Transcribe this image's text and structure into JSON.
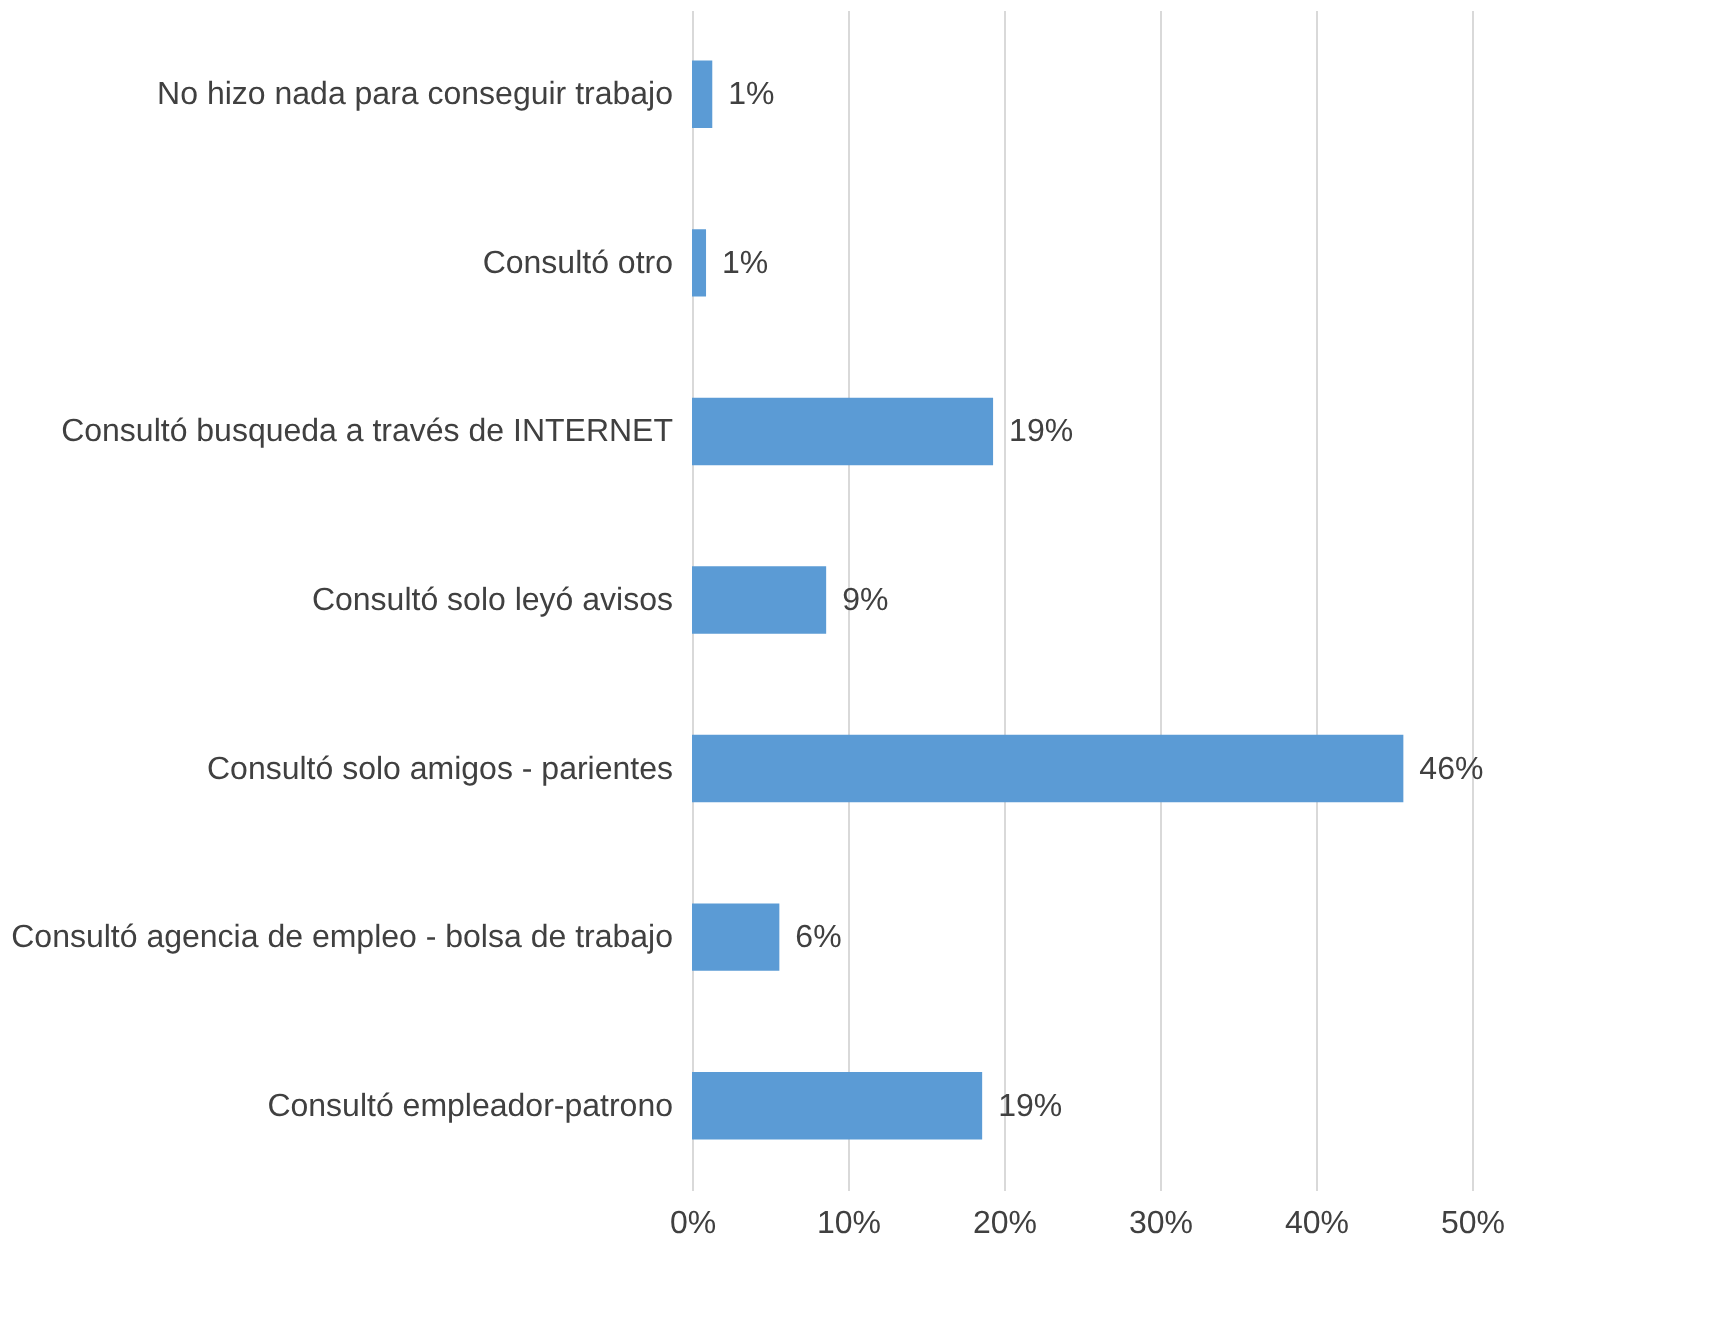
{
  "chart_data": {
    "type": "bar",
    "orientation": "horizontal",
    "categories": [
      "No hizo nada para conseguir trabajo",
      "Consultó otro",
      "Consultó busqueda a través de INTERNET",
      "Consultó solo leyó avisos",
      "Consultó solo amigos - parientes",
      "Consultó agencia de empleo - bolsa de trabajo",
      "Consultó empleador-patrono"
    ],
    "values": [
      1.3,
      0.9,
      19.3,
      8.6,
      45.6,
      5.6,
      18.6
    ],
    "value_labels": [
      "1%",
      "1%",
      "19%",
      "9%",
      "46%",
      "6%",
      "19%"
    ],
    "color": "#5b9bd5",
    "xlim": [
      0,
      50
    ],
    "xticks": [
      {
        "value": 0,
        "label": "0%"
      },
      {
        "value": 10,
        "label": "10%"
      },
      {
        "value": 20,
        "label": "20%"
      },
      {
        "value": 30,
        "label": "30%"
      },
      {
        "value": 40,
        "label": "40%"
      },
      {
        "value": 50,
        "label": "50%"
      }
    ],
    "grid": "x"
  }
}
